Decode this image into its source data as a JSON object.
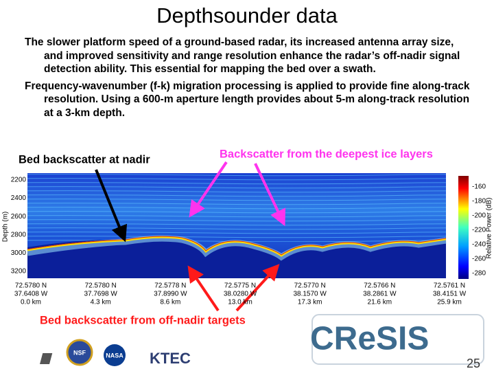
{
  "title": "Depthsounder data",
  "bullets": [
    "The slower platform speed of a ground-based radar, its increased antenna array size, and improved sensitivity and range resolution enhance the radar’s off-nadir signal detection ability.  This essential for mapping the bed over a swath.",
    "Frequency-wavenumber (f-k) migration processing is applied to provide fine along-track resolution. Using a 600-m aperture length provides about 5-m along-track resolution at a 3-km depth."
  ],
  "radargram": {
    "ylabel": "Depth (m)",
    "yticks": [
      2200,
      2400,
      2600,
      2800,
      3000,
      3200
    ],
    "colorbar_label": "Relative Power (dB)",
    "colorbar_ticks": [
      -160,
      -180,
      -200,
      -220,
      -240,
      -260,
      -280
    ],
    "locations": [
      {
        "lat": "72.5780 N",
        "lon": "37.6408 W",
        "dist": "0.0 km"
      },
      {
        "lat": "72.5780 N",
        "lon": "37.7698 W",
        "dist": "4.3 km"
      },
      {
        "lat": "72.5778 N",
        "lon": "37.8990 W",
        "dist": "8.6 km"
      },
      {
        "lat": "72.5775 N",
        "lon": "38.0280 W",
        "dist": "13.0 km"
      },
      {
        "lat": "72.5770 N",
        "lon": "38.1570 W",
        "dist": "17.3 km"
      },
      {
        "lat": "72.5766 N",
        "lon": "38.2861 W",
        "dist": "21.6 km"
      },
      {
        "lat": "72.5761 N",
        "lon": "38.4151 W",
        "dist": "25.9 km"
      }
    ]
  },
  "annotations": {
    "nadir": "Bed backscatter at nadir",
    "deepest": "Backscatter from the deepest ice layers",
    "off_nadir": "Bed backscatter from off-nadir targets"
  },
  "logos": {
    "nsf": "NSF",
    "nasa": "NASA",
    "ktec": "KTEC",
    "cresis": "CReSIS"
  },
  "page_number": "25"
}
